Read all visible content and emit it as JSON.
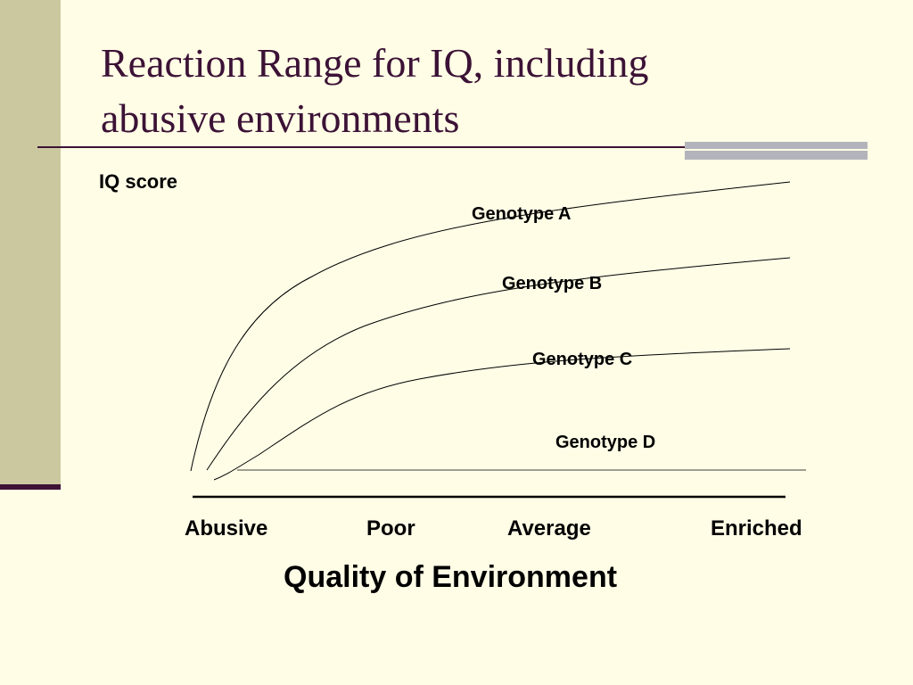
{
  "slide": {
    "title_line1": "Reaction Range for IQ, including",
    "title_line2": "abusive environments"
  },
  "colors": {
    "background": "#fffde6",
    "left_band": "#cbc8a0",
    "title_text": "#3c1236",
    "title_accent": "#b3b3bb",
    "curve_stroke": "#000000"
  },
  "chart_data": {
    "type": "line",
    "xlabel": "Quality of Environment",
    "ylabel": "IQ score",
    "tick_labels": [
      "Abusive",
      "Poor",
      "Average",
      "Enriched"
    ],
    "grid": false,
    "legend": "inline",
    "series": [
      {
        "name": "Genotype A",
        "label_text": "Genotype A"
      },
      {
        "name": "Genotype B",
        "label_text": "Genotype B"
      },
      {
        "name": "Genotype C",
        "label_text": "Genotype C"
      },
      {
        "name": "Genotype D",
        "label_text": "Genotype D"
      }
    ]
  }
}
